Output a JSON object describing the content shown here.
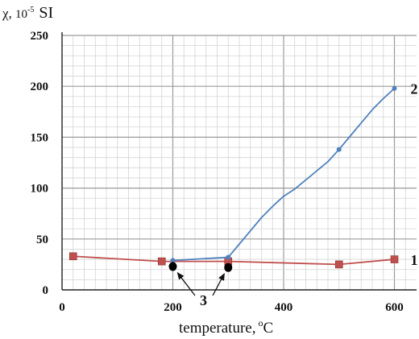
{
  "chart_data": {
    "type": "line",
    "ylabel": {
      "symbol": "χ",
      "base": "10",
      "exponent": "-5",
      "unit": "SI"
    },
    "xlabel": {
      "text": "temperature,",
      "unit_sup": "o",
      "unit": "C"
    },
    "xlim": [
      0,
      640
    ],
    "ylim": [
      0,
      250
    ],
    "x_ticks": [
      {
        "value": 0,
        "label": "0"
      },
      {
        "value": 200,
        "label": "200"
      },
      {
        "value": 400,
        "label": "400"
      },
      {
        "value": 600,
        "label": "600"
      }
    ],
    "y_ticks": [
      {
        "value": 0,
        "label": "0"
      },
      {
        "value": 50,
        "label": "50"
      },
      {
        "value": 100,
        "label": "100"
      },
      {
        "value": 150,
        "label": "150"
      },
      {
        "value": 200,
        "label": "200"
      },
      {
        "value": 250,
        "label": "250"
      }
    ],
    "x_minor_step": 20,
    "y_minor_step": 10,
    "grid": true,
    "series": [
      {
        "name": "1",
        "color": "#c0504d",
        "marker": "square",
        "x": [
          20,
          180,
          300,
          500,
          600
        ],
        "y": [
          33,
          28,
          28,
          25,
          30
        ]
      },
      {
        "name": "2",
        "color": "#4f81bd",
        "marker": "circle",
        "x": [
          200,
          300,
          320,
          340,
          360,
          380,
          400,
          420,
          440,
          460,
          480,
          500,
          520,
          540,
          560,
          580,
          600
        ],
        "y": [
          29,
          32,
          45,
          58,
          71,
          82,
          92,
          99,
          108,
          117,
          126,
          138,
          151,
          164,
          177,
          188,
          198
        ],
        "marker_indices": [
          0,
          1,
          11,
          16
        ]
      }
    ],
    "annotation": {
      "label": "3",
      "points": [
        {
          "x": 200,
          "y": 23
        },
        {
          "x": 300,
          "y": 22
        }
      ]
    }
  }
}
